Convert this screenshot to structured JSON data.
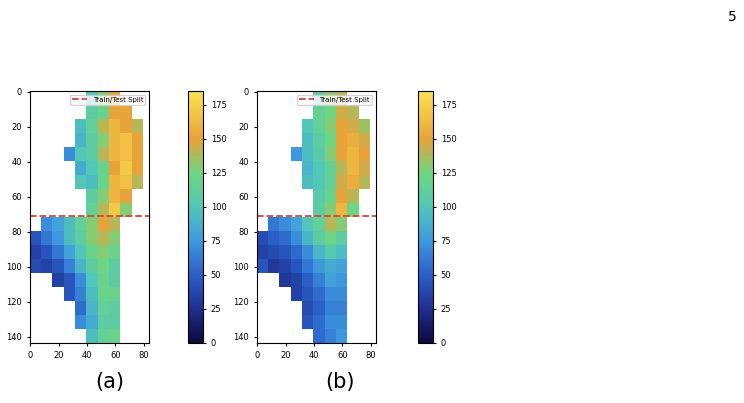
{
  "page_number": "5",
  "chart_data": [
    {
      "type": "heatmap",
      "caption": "(a)",
      "x_edges": [
        -0.5,
        7.5,
        15.5,
        23.5,
        31.5,
        39.5,
        47.5,
        55.5,
        63.5,
        71.5,
        79.5,
        87.5
      ],
      "y_edges": [
        -0.5,
        7.5,
        15.5,
        23.5,
        31.5,
        39.5,
        47.5,
        55.5,
        63.5,
        71.5,
        79.5,
        87.5,
        95.5,
        103.5,
        111.5,
        119.5,
        127.5,
        135.5,
        143.5
      ],
      "cells": [
        [
          null,
          null,
          null,
          null,
          null,
          100,
          130,
          150,
          null,
          null,
          null
        ],
        [
          null,
          null,
          null,
          null,
          null,
          110,
          120,
          150,
          150,
          null,
          null
        ],
        [
          null,
          null,
          null,
          null,
          95,
          115,
          140,
          160,
          150,
          140,
          null
        ],
        [
          null,
          null,
          null,
          null,
          90,
          110,
          130,
          160,
          165,
          150,
          null
        ],
        [
          null,
          null,
          null,
          70,
          100,
          110,
          140,
          160,
          165,
          150,
          null
        ],
        [
          null,
          null,
          null,
          null,
          85,
          100,
          120,
          150,
          170,
          150,
          null
        ],
        [
          null,
          null,
          null,
          null,
          100,
          95,
          120,
          160,
          165,
          140,
          null
        ],
        [
          null,
          null,
          null,
          null,
          null,
          110,
          130,
          160,
          150,
          null,
          null
        ],
        [
          null,
          null,
          null,
          null,
          null,
          115,
          140,
          170,
          130,
          null,
          null
        ],
        [
          null,
          70,
          80,
          95,
          115,
          130,
          150,
          140,
          null,
          null,
          null
        ],
        [
          45,
          60,
          75,
          95,
          110,
          130,
          140,
          130,
          null,
          null,
          null
        ],
        [
          35,
          45,
          60,
          80,
          100,
          120,
          130,
          120,
          null,
          null,
          null
        ],
        [
          40,
          35,
          45,
          65,
          90,
          110,
          125,
          110,
          null,
          null,
          null
        ],
        [
          null,
          null,
          35,
          45,
          70,
          100,
          120,
          110,
          null,
          null,
          null
        ],
        [
          null,
          null,
          null,
          45,
          65,
          95,
          120,
          120,
          null,
          null,
          null
        ],
        [
          null,
          null,
          null,
          null,
          55,
          90,
          115,
          110,
          null,
          null,
          null
        ],
        [
          null,
          null,
          null,
          null,
          70,
          85,
          110,
          110,
          null,
          null,
          null
        ],
        [
          null,
          null,
          null,
          null,
          null,
          95,
          115,
          120,
          null,
          null,
          null
        ]
      ],
      "xlim": [
        -0.5,
        83.5
      ],
      "ylim": [
        143.5,
        -0.5
      ],
      "xticks": [
        0,
        20,
        40,
        60,
        80
      ],
      "yticks": [
        0,
        20,
        40,
        60,
        80,
        100,
        120,
        140
      ],
      "colorbar": {
        "range": [
          0,
          185
        ],
        "ticks": [
          0,
          25,
          50,
          75,
          100,
          125,
          150,
          175
        ]
      },
      "split": {
        "name": "Train/Test Split",
        "value": 71,
        "color": "#d9453a",
        "line_style": "dashed"
      },
      "legend": "upper right"
    },
    {
      "type": "heatmap",
      "caption": "(b)",
      "x_edges": [
        -0.5,
        7.5,
        15.5,
        23.5,
        31.5,
        39.5,
        47.5,
        55.5,
        63.5,
        71.5,
        79.5,
        87.5
      ],
      "y_edges": [
        -0.5,
        7.5,
        15.5,
        23.5,
        31.5,
        39.5,
        47.5,
        55.5,
        63.5,
        71.5,
        79.5,
        87.5,
        95.5,
        103.5,
        111.5,
        119.5,
        127.5,
        135.5,
        143.5
      ],
      "cells": [
        [
          null,
          null,
          null,
          null,
          null,
          110,
          135,
          140,
          null,
          null,
          null
        ],
        [
          null,
          null,
          null,
          null,
          null,
          115,
          125,
          145,
          140,
          null,
          null
        ],
        [
          null,
          null,
          null,
          null,
          100,
          115,
          130,
          150,
          145,
          135,
          null
        ],
        [
          null,
          null,
          null,
          null,
          95,
          110,
          125,
          150,
          155,
          145,
          null
        ],
        [
          null,
          null,
          null,
          75,
          95,
          105,
          130,
          150,
          160,
          150,
          null
        ],
        [
          null,
          null,
          null,
          null,
          90,
          100,
          115,
          140,
          160,
          145,
          null
        ],
        [
          null,
          null,
          null,
          null,
          95,
          100,
          115,
          145,
          155,
          140,
          null
        ],
        [
          null,
          null,
          null,
          null,
          null,
          105,
          120,
          150,
          140,
          null,
          null
        ],
        [
          null,
          null,
          null,
          null,
          null,
          110,
          130,
          160,
          125,
          null,
          null
        ],
        [
          null,
          60,
          70,
          80,
          100,
          115,
          140,
          130,
          null,
          null,
          null
        ],
        [
          40,
          50,
          55,
          70,
          90,
          110,
          125,
          110,
          null,
          null,
          null
        ],
        [
          35,
          40,
          45,
          55,
          70,
          90,
          105,
          95,
          null,
          null,
          null
        ],
        [
          45,
          30,
          35,
          45,
          60,
          75,
          85,
          80,
          null,
          null,
          null
        ],
        [
          null,
          null,
          30,
          35,
          50,
          65,
          80,
          75,
          null,
          null,
          null
        ],
        [
          null,
          null,
          null,
          35,
          45,
          55,
          70,
          70,
          null,
          null,
          null
        ],
        [
          null,
          null,
          null,
          null,
          40,
          50,
          65,
          65,
          null,
          null,
          null
        ],
        [
          null,
          null,
          null,
          null,
          45,
          55,
          70,
          70,
          null,
          null,
          null
        ],
        [
          null,
          null,
          null,
          null,
          null,
          55,
          65,
          75,
          null,
          null,
          null
        ]
      ],
      "xlim": [
        -0.5,
        83.5
      ],
      "ylim": [
        143.5,
        -0.5
      ],
      "xticks": [
        0,
        20,
        40,
        60,
        80
      ],
      "yticks": [
        0,
        20,
        40,
        60,
        80,
        100,
        120,
        140
      ],
      "colorbar": {
        "range": [
          0,
          185
        ],
        "ticks": [
          0,
          25,
          50,
          75,
          100,
          125,
          150,
          175
        ]
      },
      "split": {
        "name": "Train/Test Split",
        "value": 71,
        "color": "#d9453a",
        "line_style": "dashed"
      },
      "legend": "upper right"
    }
  ]
}
